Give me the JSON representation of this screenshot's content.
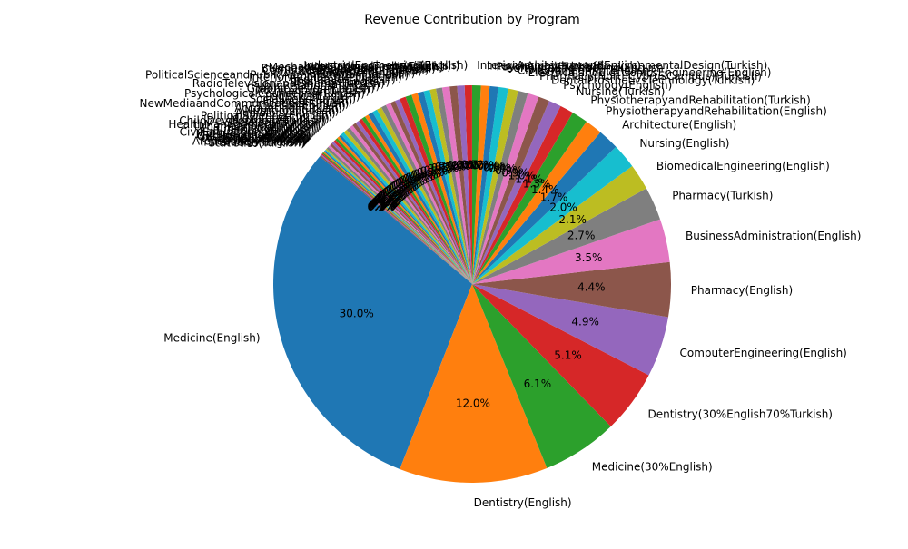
{
  "chart_data": {
    "type": "pie",
    "title": "Revenue Contribution by Program",
    "start_angle": 140,
    "direction": "counterclockwise",
    "autopct_format": "{v}%",
    "slices": [
      {
        "label": "Medicine(English)",
        "value": 30.0,
        "pct_label": "30.0%",
        "color": "#1f77b4"
      },
      {
        "label": "Dentistry(English)",
        "value": 12.0,
        "pct_label": "12.0%",
        "color": "#ff7f0e"
      },
      {
        "label": "Medicine(30%English)",
        "value": 6.1,
        "pct_label": "6.1%",
        "color": "#2ca02c"
      },
      {
        "label": "Dentistry(30%English70%Turkish)",
        "value": 5.1,
        "pct_label": "5.1%",
        "color": "#d62728"
      },
      {
        "label": "ComputerEngineering(English)",
        "value": 4.9,
        "pct_label": "4.9%",
        "color": "#9467bd"
      },
      {
        "label": "Pharmacy(English)",
        "value": 4.4,
        "pct_label": "4.4%",
        "color": "#8c564b"
      },
      {
        "label": "BusinessAdministration(English)",
        "value": 3.5,
        "pct_label": "3.5%",
        "color": "#e377c2"
      },
      {
        "label": "Pharmacy(Turkish)",
        "value": 2.7,
        "pct_label": "2.7%",
        "color": "#7f7f7f"
      },
      {
        "label": "BiomedicalEngineering(English)",
        "value": 2.1,
        "pct_label": "2.1%",
        "color": "#bcbd22"
      },
      {
        "label": "Nursing(English)",
        "value": 2.0,
        "pct_label": "2.0%",
        "color": "#17becf"
      },
      {
        "label": "Architecture(English)",
        "value": 1.7,
        "pct_label": "1.7%",
        "color": "#1f77b4"
      },
      {
        "label": "PhysiotherapyandRehabilitation(English)",
        "value": 1.4,
        "pct_label": "1.4%",
        "color": "#ff7f0e"
      },
      {
        "label": "PhysiotherapyandRehabilitation(Turkish)",
        "value": 1.3,
        "pct_label": "1.3%",
        "color": "#2ca02c"
      },
      {
        "label": "Nursing(Turkish)",
        "value": 1.1,
        "pct_label": "1.1%",
        "color": "#d62728"
      },
      {
        "label": "Psychology(English)",
        "value": 1.0,
        "pct_label": "1.0%",
        "color": "#9467bd"
      },
      {
        "label": "DentalProstheticsTechnology(Turkish)",
        "value": 0.9,
        "pct_label": "0.9%",
        "color": "#8c564b"
      },
      {
        "label": "Pharmacy(NorthCyprusCampus)(Turkish)",
        "value": 0.9,
        "pct_label": "0.9%",
        "color": "#e377c2"
      },
      {
        "label": "ElectricalandElectronicsEngineering(English)",
        "value": 0.8,
        "pct_label": "0.8%",
        "color": "#7f7f7f"
      },
      {
        "label": "CivilEngineering(English)",
        "value": 0.8,
        "pct_label": "0.8%",
        "color": "#bcbd22"
      },
      {
        "label": "SoftwareEngineering(English)",
        "value": 0.8,
        "pct_label": "0.8%",
        "color": "#17becf"
      },
      {
        "label": "Psychology(Turkish)",
        "value": 0.7,
        "pct_label": "0.7%",
        "color": "#1f77b4"
      },
      {
        "label": "InteriorArchitecture(English)",
        "value": 0.7,
        "pct_label": "0.7%",
        "color": "#ff7f0e"
      },
      {
        "label": "InteriorArchitectureandEnvironmentalDesign(Turkish)",
        "value": 0.7,
        "pct_label": "0.7%",
        "color": "#2ca02c"
      },
      {
        "label": "IndustrialEngineering(English)",
        "value": 0.6,
        "pct_label": "0.6%",
        "color": "#d62728"
      },
      {
        "label": "Law(Turkish)",
        "value": 0.6,
        "pct_label": "0.6%",
        "color": "#9467bd"
      },
      {
        "label": "InternationalTrade(English)",
        "value": 0.6,
        "pct_label": "0.6%",
        "color": "#8c564b"
      },
      {
        "label": "MechanicalEngineering(English)",
        "value": 0.6,
        "pct_label": "0.6%",
        "color": "#e377c2"
      },
      {
        "label": "BusinessAdministration(Turkish)",
        "value": 0.5,
        "pct_label": "0.5%",
        "color": "#7f7f7f"
      },
      {
        "label": "ComputerEngineering(Turkish)",
        "value": 0.5,
        "pct_label": "0.5%",
        "color": "#bcbd22"
      },
      {
        "label": "Management(English)",
        "value": 0.5,
        "pct_label": "0.5%",
        "color": "#17becf"
      },
      {
        "label": "Economics(English)",
        "value": 0.5,
        "pct_label": "0.5%",
        "color": "#1f77b4"
      },
      {
        "label": "PoliticalScienceandPublicAdministration(Turkish)",
        "value": 0.5,
        "pct_label": "0.5%",
        "color": "#ff7f0e"
      },
      {
        "label": "InteriorArchitecture(Turkish)",
        "value": 0.5,
        "pct_label": "0.5%",
        "color": "#2ca02c"
      },
      {
        "label": "Economics(Turkish)",
        "value": 0.5,
        "pct_label": "0.5%",
        "color": "#d62728"
      },
      {
        "label": "Business(English)",
        "value": 0.4,
        "pct_label": "0.4%",
        "color": "#9467bd"
      },
      {
        "label": "RadioTelevisionandCinema(Turkish)",
        "value": 0.4,
        "pct_label": "0.4%",
        "color": "#8c564b"
      },
      {
        "label": "PublicRelations(Turkish)",
        "value": 0.4,
        "pct_label": "0.4%",
        "color": "#e377c2"
      },
      {
        "label": "GraphicDesign(English)",
        "value": 0.4,
        "pct_label": "0.4%",
        "color": "#7f7f7f"
      },
      {
        "label": "Architecture(Turkish)",
        "value": 0.4,
        "pct_label": "0.4%",
        "color": "#bcbd22"
      },
      {
        "label": "PsychologicalCounseling(Turkish)",
        "value": 0.4,
        "pct_label": "0.4%",
        "color": "#17becf"
      },
      {
        "label": "Logistics(English)",
        "value": 0.4,
        "pct_label": "0.4%",
        "color": "#1f77b4"
      },
      {
        "label": "SocialWork(Turkish)",
        "value": 0.3,
        "pct_label": "0.3%",
        "color": "#ff7f0e"
      },
      {
        "label": "Finance(English)",
        "value": 0.3,
        "pct_label": "0.3%",
        "color": "#2ca02c"
      },
      {
        "label": "NewMediaandCommunication(Turkish)",
        "value": 0.3,
        "pct_label": "0.3%",
        "color": "#d62728"
      },
      {
        "label": "Tourism(English)",
        "value": 0.3,
        "pct_label": "0.3%",
        "color": "#9467bd"
      },
      {
        "label": "Accounting(Turkish)",
        "value": 0.3,
        "pct_label": "0.3%",
        "color": "#8c564b"
      },
      {
        "label": "Nutrition(Turkish)",
        "value": 0.3,
        "pct_label": "0.3%",
        "color": "#e377c2"
      },
      {
        "label": "Audiology(Turkish)",
        "value": 0.3,
        "pct_label": "0.3%",
        "color": "#7f7f7f"
      },
      {
        "label": "PoliticalScience(English)",
        "value": 0.3,
        "pct_label": "0.3%",
        "color": "#bcbd22"
      },
      {
        "label": "Midwifery(Turkish)",
        "value": 0.3,
        "pct_label": "0.3%",
        "color": "#17becf"
      },
      {
        "label": "ChildDevelopment(Turkish)",
        "value": 0.2,
        "pct_label": "0.2%",
        "color": "#1f77b4"
      },
      {
        "label": "Sociology(Turkish)",
        "value": 0.2,
        "pct_label": "0.2%",
        "color": "#ff7f0e"
      },
      {
        "label": "HealthManagement(Turkish)",
        "value": 0.2,
        "pct_label": "0.2%",
        "color": "#2ca02c"
      },
      {
        "label": "UrbanPlanning(Turkish)",
        "value": 0.2,
        "pct_label": "0.2%",
        "color": "#d62728"
      },
      {
        "label": "Chemistry(Turkish)",
        "value": 0.2,
        "pct_label": "0.2%",
        "color": "#9467bd"
      },
      {
        "label": "History(Turkish)",
        "value": 0.2,
        "pct_label": "0.2%",
        "color": "#8c564b"
      },
      {
        "label": "CivilEngineering(Turkish)",
        "value": 0.2,
        "pct_label": "0.2%",
        "color": "#e377c2"
      },
      {
        "label": "Mathematics(Turkish)",
        "value": 0.2,
        "pct_label": "0.2%",
        "color": "#7f7f7f"
      },
      {
        "label": "Philosophy(Turkish)",
        "value": 0.1,
        "pct_label": "0.1%",
        "color": "#bcbd22"
      },
      {
        "label": "Gastronomy(Turkish)",
        "value": 0.1,
        "pct_label": "0.1%",
        "color": "#17becf"
      },
      {
        "label": "Physics(Turkish)",
        "value": 0.1,
        "pct_label": "0.1%",
        "color": "#1f77b4"
      },
      {
        "label": "Geography(Turkish)",
        "value": 0.1,
        "pct_label": "0.1%",
        "color": "#ff7f0e"
      },
      {
        "label": "Biology(Turkish)",
        "value": 0.1,
        "pct_label": "0.1%",
        "color": "#2ca02c"
      },
      {
        "label": "Archaeology(Turkish)",
        "value": 0.1,
        "pct_label": "0.1%",
        "color": "#d62728"
      },
      {
        "label": "Translation(English)",
        "value": 0.1,
        "pct_label": "0.1%",
        "color": "#9467bd"
      },
      {
        "label": "Statistics(Turkish)",
        "value": 0.1,
        "pct_label": "0.1%",
        "color": "#8c564b"
      }
    ]
  }
}
